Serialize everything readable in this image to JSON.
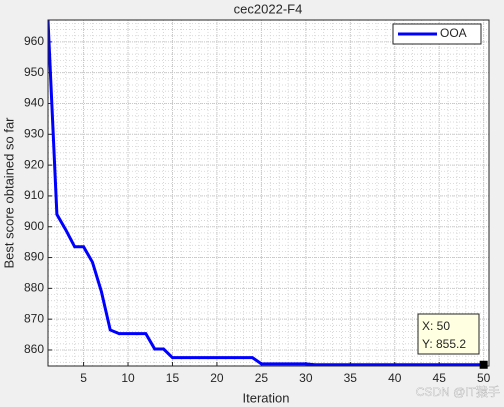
{
  "chart_data": {
    "type": "line",
    "title": "cec2022-F4",
    "xlabel": "Iteration",
    "ylabel": "Best score obtained so far",
    "x": [
      1,
      2,
      3,
      4,
      5,
      6,
      7,
      8,
      9,
      10,
      11,
      12,
      13,
      14,
      15,
      16,
      17,
      18,
      19,
      20,
      21,
      22,
      23,
      24,
      25,
      26,
      27,
      28,
      29,
      30,
      31,
      32,
      33,
      34,
      35,
      36,
      37,
      38,
      39,
      40,
      41,
      42,
      43,
      44,
      45,
      46,
      47,
      48,
      49,
      50
    ],
    "series": [
      {
        "name": "OOA",
        "color": "#0000ff",
        "values": [
          967,
          904,
          899,
          893.5,
          893.5,
          888.5,
          879,
          866.5,
          865.3,
          865.3,
          865.3,
          865.3,
          860.3,
          860.3,
          857.5,
          857.5,
          857.5,
          857.5,
          857.5,
          857.5,
          857.5,
          857.5,
          857.5,
          857.5,
          855.5,
          855.5,
          855.5,
          855.5,
          855.5,
          855.5,
          855.2,
          855.2,
          855.2,
          855.2,
          855.2,
          855.2,
          855.2,
          855.2,
          855.2,
          855.2,
          855.2,
          855.2,
          855.2,
          855.2,
          855.2,
          855.2,
          855.2,
          855.2,
          855.2,
          855.2
        ]
      }
    ],
    "xlim": [
      1,
      50.6
    ],
    "ylim": [
      854.8,
      967.1
    ],
    "xticks": [
      5,
      10,
      15,
      20,
      25,
      30,
      35,
      40,
      45,
      50
    ],
    "yticks": [
      860,
      870,
      880,
      890,
      900,
      910,
      920,
      930,
      940,
      950,
      960
    ],
    "grid": true,
    "minor_grid": true,
    "legend": "upper right",
    "datatip": {
      "x_label": "X: 50",
      "y_label": "Y: 855.2",
      "index": 49
    },
    "watermark": "CSDN @IT猿手"
  }
}
